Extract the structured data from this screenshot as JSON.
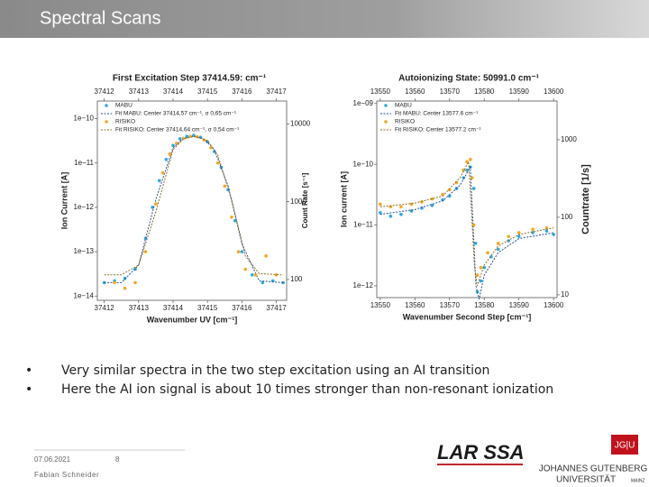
{
  "header": {
    "title": "Spectral Scans"
  },
  "bullets": [
    "Very similar spectra in the two step excitation using an AI transition",
    "Here the AI ion signal is about 10 times stronger than non-resonant ionization"
  ],
  "footer": {
    "date": "07.06.2021",
    "page": "8",
    "author": "Fabian Schneider"
  },
  "logos": {
    "larissa": "LAR SSA",
    "jgu": "JG|U",
    "university_1": "JOHANNES GUTENBERG",
    "university_2": "UNIVERSITÄT",
    "university_3": "MAINZ"
  },
  "chart_data": [
    {
      "type": "scatter",
      "title": "First Excitation Step 37414.59: cm⁻¹",
      "xlabel": "Wavenumber UV [cm⁻¹]",
      "ylabel": "Ion Current [A]",
      "y2label": "Count Rate [s⁻¹]",
      "xlim": [
        37411.8,
        37417.3
      ],
      "xticks": [
        37412,
        37413,
        37414,
        37415,
        37416,
        37417
      ],
      "ylim": [
        8e-15,
        2.5e-10
      ],
      "ylog": true,
      "yticks": [
        {
          "value": 1e-10,
          "label": "1e−10"
        },
        {
          "value": 1e-11,
          "label": "1e−11"
        },
        {
          "value": 1e-12,
          "label": "1e−12"
        },
        {
          "value": 1e-13,
          "label": "1e−13"
        },
        {
          "value": 1e-14,
          "label": "1e−14"
        }
      ],
      "y2lim": [
        54,
        19700
      ],
      "y2log": true,
      "y2ticks": [
        100,
        1000,
        10000
      ],
      "legend": "upper-left",
      "series": [
        {
          "name": "MABU",
          "color": "#2ea8e0",
          "style": "markers",
          "x": [
            37412.0,
            37412.3,
            37412.6,
            37412.9,
            37413.2,
            37413.4,
            37413.6,
            37413.8,
            37414.0,
            37414.2,
            37414.4,
            37414.6,
            37414.8,
            37415.0,
            37415.2,
            37415.4,
            37415.6,
            37415.8,
            37416.0,
            37416.3,
            37416.6,
            37416.9,
            37417.2
          ],
          "values": [
            2e-14,
            2.2e-14,
            2.5e-14,
            4e-14,
            2e-13,
            1e-12,
            4e-12,
            1.2e-11,
            2.5e-11,
            3.5e-11,
            4e-11,
            4.2e-11,
            3.8e-11,
            3e-11,
            1.8e-11,
            8e-12,
            2.5e-12,
            5e-13,
            1e-13,
            3e-14,
            2e-14,
            2.2e-14,
            2e-14
          ]
        },
        {
          "name": "Fit MABU: Center 37414,57 cm⁻¹, σ 0,65 cm⁻¹",
          "color": "#1f4e9a",
          "style": "dotted",
          "x": [
            37412,
            37412.5,
            37413,
            37413.5,
            37414,
            37414.3,
            37414.57,
            37414.9,
            37415.2,
            37415.6,
            37416,
            37416.5,
            37417.2
          ],
          "values": [
            2e-14,
            2e-14,
            5e-14,
            1.5e-12,
            2.2e-11,
            3.6e-11,
            4e-11,
            3.5e-11,
            2e-11,
            3e-12,
            1.5e-13,
            2.2e-14,
            2e-14
          ]
        },
        {
          "name": "RISIKO",
          "color": "#f5a623",
          "style": "markers",
          "x": [
            37412.3,
            37412.6,
            37412.9,
            37413.2,
            37413.5,
            37413.7,
            37413.9,
            37414.1,
            37414.3,
            37414.5,
            37414.7,
            37414.9,
            37415.1,
            37415.3,
            37415.5,
            37415.7,
            37415.9,
            37416.1,
            37416.4,
            37416.7,
            37417.0
          ],
          "values": [
            2e-14,
            1.5e-14,
            2e-14,
            1e-13,
            1.2e-12,
            6e-12,
            1.6e-11,
            2.8e-11,
            3.6e-11,
            4e-11,
            3.9e-11,
            3.3e-11,
            2.2e-11,
            1e-11,
            3e-12,
            6e-13,
            1e-13,
            4e-14,
            3e-14,
            8e-14,
            3e-14
          ]
        },
        {
          "name": "Fit RISIKO: Center 37414,64 cm⁻¹, σ 0,54 cm⁻¹",
          "color": "#8a6d1e",
          "style": "dotted",
          "x": [
            37412,
            37412.5,
            37413,
            37413.5,
            37414,
            37414.3,
            37414.64,
            37415,
            37415.3,
            37415.7,
            37416.1,
            37416.5,
            37417.2
          ],
          "values": [
            3e-14,
            3e-14,
            5e-14,
            8e-13,
            2e-11,
            3.5e-11,
            4e-11,
            3.2e-11,
            1.5e-11,
            1.5e-12,
            8e-14,
            3.2e-14,
            3e-14
          ]
        }
      ]
    },
    {
      "type": "scatter",
      "title": "Autoionizing State: 50991.0 cm⁻¹",
      "xlabel": "Wavenumber Second Step [cm⁻¹]",
      "ylabel": "Ion current [A]",
      "y2label": "Countrate [1/s]",
      "xlim": [
        13549,
        13601
      ],
      "xticks": [
        13550,
        13560,
        13570,
        13580,
        13590,
        13600
      ],
      "ylim": [
        6.4e-13,
        1.1e-09
      ],
      "ylog": true,
      "yticks": [
        {
          "value": 1e-09,
          "label": "1e−09"
        },
        {
          "value": 1e-10,
          "label": "1e−10"
        },
        {
          "value": 1e-11,
          "label": "1e−11"
        },
        {
          "value": 1e-12,
          "label": "1e−12"
        }
      ],
      "y2lim": [
        9.2,
        3160
      ],
      "y2log": true,
      "y2ticks": [
        10,
        100,
        1000
      ],
      "legend": "upper-left",
      "series": [
        {
          "name": "MABU",
          "color": "#2ea8e0",
          "style": "markers",
          "x": [
            13550,
            13553,
            13556,
            13559,
            13562,
            13565,
            13568,
            13570,
            13572,
            13574,
            13575,
            13576,
            13577,
            13577.5,
            13578,
            13579,
            13580,
            13582,
            13584,
            13587,
            13590,
            13594,
            13598,
            13600
          ],
          "values": [
            1.6e-11,
            1.4e-11,
            1.5e-11,
            1.7e-11,
            1.9e-11,
            2.1e-11,
            2.6e-11,
            3e-11,
            4e-11,
            6e-11,
            8e-11,
            9e-11,
            4e-11,
            5e-12,
            8e-13,
            1.2e-12,
            2e-12,
            3e-12,
            4e-12,
            5.5e-12,
            6.5e-12,
            7.5e-12,
            8e-12,
            7e-12
          ]
        },
        {
          "name": "Fit MABU: Center 13577.6 cm⁻¹",
          "color": "#1f4e9a",
          "style": "dotted",
          "x": [
            13550,
            13560,
            13568,
            13573,
            13576,
            13577.6,
            13578.5,
            13580,
            13584,
            13590,
            13600
          ],
          "values": [
            1.5e-11,
            1.8e-11,
            2.5e-11,
            4.5e-11,
            9e-11,
            1e-12,
            6e-13,
            1.5e-12,
            3.5e-12,
            6e-12,
            7.5e-12
          ]
        },
        {
          "name": "RISIKO",
          "color": "#f5a623",
          "style": "markers",
          "x": [
            13550,
            13553,
            13556,
            13559,
            13562,
            13565,
            13568,
            13570,
            13572,
            13574,
            13575,
            13576,
            13576.5,
            13577,
            13578,
            13579,
            13581,
            13584,
            13587,
            13590,
            13594,
            13598
          ],
          "values": [
            2.2e-11,
            2e-11,
            2e-11,
            2.2e-11,
            2.4e-11,
            2.7e-11,
            3.2e-11,
            3.8e-11,
            5e-11,
            8e-11,
            1.1e-10,
            1.2e-10,
            6e-11,
            1e-11,
            1.5e-12,
            2e-12,
            3.5e-12,
            5e-12,
            6.5e-12,
            7.5e-12,
            8.5e-12,
            9e-12
          ]
        },
        {
          "name": "Fit RISIKO: Center 13577.2 cm⁻¹",
          "color": "#8a6d1e",
          "style": "dotted",
          "x": [
            13550,
            13560,
            13568,
            13573,
            13575.5,
            13577.2,
            13578,
            13580,
            13584,
            13590,
            13600
          ],
          "values": [
            2e-11,
            2.3e-11,
            3e-11,
            6e-11,
            1.1e-10,
            2e-12,
            1e-12,
            2.2e-12,
            4.5e-12,
            7e-12,
            9e-12
          ]
        }
      ]
    }
  ]
}
